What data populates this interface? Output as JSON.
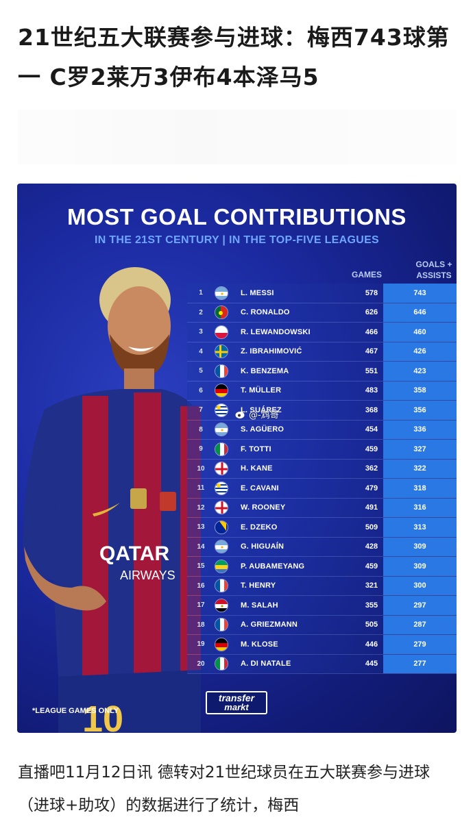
{
  "headline": "21世纪五大联赛参与进球：梅西743球第一 C罗2莱万3伊布4本泽马5",
  "graphic": {
    "title": "MOST GOAL CONTRIBUTIONS",
    "subtitle": "IN THE 21ST CENTURY | IN THE TOP-FIVE LEAGUES",
    "col_games": "GAMES",
    "col_ga_line1": "GOALS +",
    "col_ga_line2": "ASSISTS",
    "footnote": "*LEAGUE GAMES ONLY",
    "logo_line1": "transfer",
    "logo_line2": "markt",
    "watermark": "@-鸩哥",
    "jersey_text": "QATAR AIRWAYS",
    "jersey_number": "10",
    "rows": [
      {
        "rank": "1",
        "name": "L. MESSI",
        "games": "578",
        "ga": "743",
        "flag": "argentina"
      },
      {
        "rank": "2",
        "name": "C. RONALDO",
        "games": "626",
        "ga": "646",
        "flag": "portugal"
      },
      {
        "rank": "3",
        "name": "R. LEWANDOWSKI",
        "games": "466",
        "ga": "460",
        "flag": "poland"
      },
      {
        "rank": "4",
        "name": "Z. IBRAHIMOVIĆ",
        "games": "467",
        "ga": "426",
        "flag": "sweden"
      },
      {
        "rank": "5",
        "name": "K. BENZEMA",
        "games": "551",
        "ga": "423",
        "flag": "france"
      },
      {
        "rank": "6",
        "name": "T. MÜLLER",
        "games": "483",
        "ga": "358",
        "flag": "germany"
      },
      {
        "rank": "7",
        "name": "L. SUÁREZ",
        "games": "368",
        "ga": "356",
        "flag": "uruguay"
      },
      {
        "rank": "8",
        "name": "S. AGÜERO",
        "games": "454",
        "ga": "336",
        "flag": "argentina"
      },
      {
        "rank": "9",
        "name": "F. TOTTI",
        "games": "459",
        "ga": "327",
        "flag": "italy"
      },
      {
        "rank": "10",
        "name": "H. KANE",
        "games": "362",
        "ga": "322",
        "flag": "england"
      },
      {
        "rank": "11",
        "name": "E. CAVANI",
        "games": "479",
        "ga": "318",
        "flag": "uruguay"
      },
      {
        "rank": "12",
        "name": "W. ROONEY",
        "games": "491",
        "ga": "316",
        "flag": "england"
      },
      {
        "rank": "13",
        "name": "E. DZEKO",
        "games": "509",
        "ga": "313",
        "flag": "bosnia"
      },
      {
        "rank": "14",
        "name": "G. HIGUAÍN",
        "games": "428",
        "ga": "309",
        "flag": "argentina"
      },
      {
        "rank": "15",
        "name": "P. AUBAMEYANG",
        "games": "459",
        "ga": "309",
        "flag": "gabon"
      },
      {
        "rank": "16",
        "name": "T. HENRY",
        "games": "321",
        "ga": "300",
        "flag": "france"
      },
      {
        "rank": "17",
        "name": "M. SALAH",
        "games": "355",
        "ga": "297",
        "flag": "egypt"
      },
      {
        "rank": "18",
        "name": "A. GRIEZMANN",
        "games": "505",
        "ga": "287",
        "flag": "france"
      },
      {
        "rank": "19",
        "name": "M. KLOSE",
        "games": "446",
        "ga": "279",
        "flag": "germany"
      },
      {
        "rank": "20",
        "name": "A. DI NATALE",
        "games": "445",
        "ga": "277",
        "flag": "italy"
      }
    ]
  },
  "body_text": "直播吧11月12日讯 德转对21世纪球员在五大联赛参与进球（进球+助攻）的数据进行了统计，梅西",
  "colors": {
    "graphic_bg": "#1b2aa0",
    "ga_column": "#2a78e4",
    "subtitle": "#6fa6ff"
  }
}
